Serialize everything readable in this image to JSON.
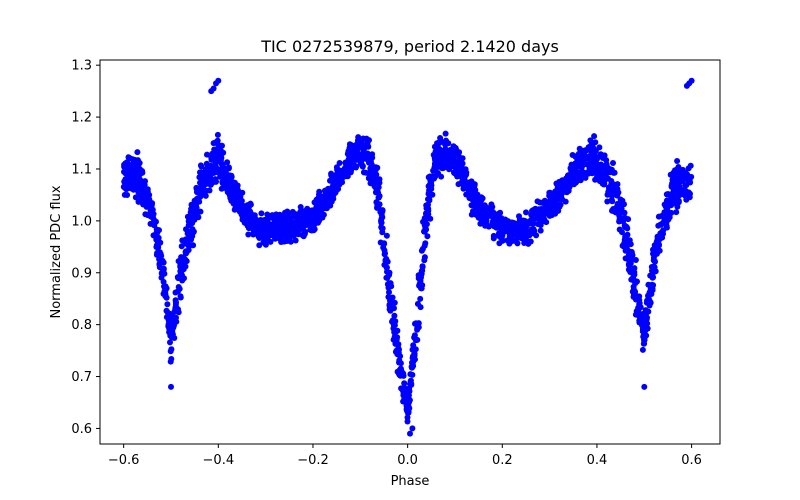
{
  "chart_data": {
    "type": "scatter",
    "title": "TIC 0272539879, period 2.1420 days",
    "xlabel": "Phase",
    "ylabel": "Normalized PDC flux",
    "xlim": [
      -0.65,
      0.66
    ],
    "ylim": [
      0.57,
      1.31
    ],
    "xticks": [
      -0.6,
      -0.4,
      -0.2,
      0.0,
      0.2,
      0.4,
      0.6
    ],
    "xtick_labels": [
      "−0.6",
      "−0.4",
      "−0.2",
      "0.0",
      "0.2",
      "0.4",
      "0.6"
    ],
    "yticks": [
      0.6,
      0.7,
      0.8,
      0.9,
      1.0,
      1.1,
      1.2,
      1.3
    ],
    "ytick_labels": [
      "0.6",
      "0.7",
      "0.8",
      "0.9",
      "1.0",
      "1.1",
      "1.2",
      "1.3"
    ],
    "grid": false,
    "marker_color": "#0000ff",
    "series": [
      {
        "x": [
          -0.6,
          -0.58,
          -0.56,
          -0.54,
          -0.52,
          -0.5,
          -0.48,
          -0.46,
          -0.44,
          -0.42,
          -0.4,
          -0.38,
          -0.36,
          -0.34,
          -0.32,
          -0.3,
          -0.28,
          -0.26,
          -0.24,
          -0.22,
          -0.2,
          -0.18,
          -0.16,
          -0.14,
          -0.12,
          -0.1,
          -0.08,
          -0.06,
          -0.04,
          -0.02,
          0.0,
          0.02,
          0.04,
          0.06,
          0.08,
          0.1,
          0.12,
          0.14,
          0.16,
          0.18,
          0.2,
          0.22,
          0.24,
          0.26,
          0.28,
          0.3,
          0.32,
          0.34,
          0.36,
          0.38,
          0.4,
          0.42,
          0.44,
          0.46,
          0.48,
          0.5,
          0.52,
          0.54,
          0.56,
          0.58,
          0.6
        ],
        "y": [
          1.08,
          1.1,
          1.06,
          1.01,
          0.92,
          0.76,
          0.9,
          0.98,
          1.06,
          1.09,
          1.12,
          1.08,
          1.04,
          1.01,
          0.99,
          0.98,
          0.98,
          0.99,
          0.99,
          1.0,
          1.0,
          1.03,
          1.06,
          1.09,
          1.12,
          1.13,
          1.12,
          1.04,
          0.88,
          0.74,
          0.63,
          0.8,
          1.02,
          1.12,
          1.13,
          1.12,
          1.08,
          1.04,
          1.01,
          1.0,
          0.99,
          0.98,
          0.98,
          0.99,
          1.01,
          1.03,
          1.05,
          1.08,
          1.11,
          1.12,
          1.12,
          1.09,
          1.05,
          0.98,
          0.88,
          0.78,
          0.92,
          1.0,
          1.05,
          1.08,
          1.07
        ],
        "scatter": [
          0.08,
          0.09,
          0.09,
          0.08,
          0.09,
          0.07,
          0.1,
          0.1,
          0.09,
          0.09,
          0.09,
          0.08,
          0.07,
          0.06,
          0.06,
          0.06,
          0.06,
          0.06,
          0.06,
          0.06,
          0.06,
          0.06,
          0.06,
          0.06,
          0.06,
          0.07,
          0.08,
          0.1,
          0.1,
          0.09,
          0.05,
          0.1,
          0.1,
          0.08,
          0.07,
          0.07,
          0.06,
          0.06,
          0.06,
          0.06,
          0.06,
          0.06,
          0.06,
          0.06,
          0.06,
          0.06,
          0.06,
          0.06,
          0.07,
          0.08,
          0.08,
          0.08,
          0.09,
          0.1,
          0.1,
          0.08,
          0.1,
          0.09,
          0.09,
          0.09,
          0.08
        ]
      }
    ],
    "extremes": {
      "x": [
        -0.4,
        -0.405,
        -0.41,
        -0.415,
        0.59,
        0.595,
        0.6,
        -0.5,
        0.5,
        0.005,
        0.01
      ],
      "y": [
        1.27,
        1.265,
        1.255,
        1.25,
        1.26,
        1.265,
        1.27,
        0.68,
        0.68,
        0.59,
        0.6
      ]
    }
  }
}
